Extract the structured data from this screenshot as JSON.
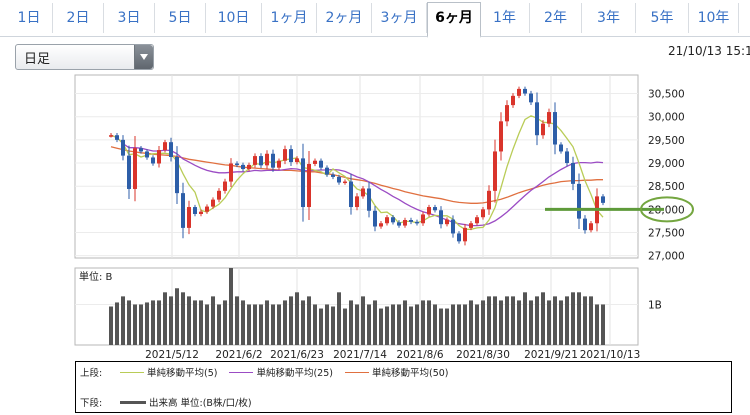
{
  "tabs": [
    {
      "label": "1日"
    },
    {
      "label": "2日"
    },
    {
      "label": "3日"
    },
    {
      "label": "5日"
    },
    {
      "label": "10日"
    },
    {
      "label": "1ヶ月"
    },
    {
      "label": "2ヶ月"
    },
    {
      "label": "3ヶ月"
    },
    {
      "label": "6ヶ月",
      "active": true
    },
    {
      "label": "1年"
    },
    {
      "label": "2年"
    },
    {
      "label": "3年"
    },
    {
      "label": "5年"
    },
    {
      "label": "10年"
    }
  ],
  "period_select": {
    "value": "日足"
  },
  "datetime": "21/10/13 15:1",
  "legend": {
    "upper_label": "上段:",
    "lower_label": "下段:",
    "ma5": "単純移動平均(5)",
    "ma25": "単純移動平均(25)",
    "ma50": "単純移動平均(50)",
    "volume": "出来高 単位:(B株/口/枚)"
  },
  "colors": {
    "up": "#d9342b",
    "down": "#2d5ea8",
    "ma5": "#b9cc57",
    "ma25": "#9b4cc4",
    "ma50": "#e07040",
    "volume": "#555555",
    "highlight_line": "#5e9a3a",
    "highlight_circle": "#74a640"
  },
  "chart_data": {
    "type": "candlestick",
    "x_ticks": [
      "2021/5/12",
      "2021/6/2",
      "2021/6/23",
      "2021/7/14",
      "2021/8/6",
      "2021/8/30",
      "2021/9/21",
      "2021/10/13"
    ],
    "y_ticks": [
      "27,000",
      "27,500",
      "28,000",
      "28,500",
      "29,000",
      "29,500",
      "30,000",
      "30,500"
    ],
    "ylim": [
      26950,
      30900
    ],
    "volume_unit_label": "単位: B",
    "volume_tick_label": "1B",
    "volume_ylim": [
      0,
      1.9
    ],
    "highlight_value": 28000,
    "highlight_label": "28,000",
    "start_close": 29600,
    "closes": [
      29600,
      29500,
      29160,
      28440,
      29320,
      29250,
      29120,
      28990,
      29280,
      29450,
      29130,
      28350,
      27600,
      28050,
      27900,
      27950,
      28060,
      28210,
      28400,
      28600,
      28990,
      28960,
      28870,
      28960,
      29150,
      28950,
      29200,
      28900,
      29050,
      29300,
      29020,
      29100,
      28050,
      28980,
      29050,
      28900,
      28750,
      28700,
      28580,
      28600,
      28050,
      28280,
      28450,
      27970,
      27630,
      27700,
      27830,
      27720,
      27650,
      27770,
      27730,
      27700,
      27890,
      28050,
      27980,
      27680,
      27780,
      27480,
      27310,
      27600,
      27700,
      27830,
      28000,
      28400,
      29250,
      29900,
      30250,
      30450,
      30600,
      30500,
      30310,
      29600,
      29850,
      30100,
      29400,
      29250,
      29000,
      28550,
      27800,
      27550,
      27700,
      28280,
      28140
    ],
    "ma5": [
      29600,
      29550,
      29420,
      29180,
      29200,
      29130,
      29170,
      29200,
      29210,
      29210,
      29190,
      29040,
      28770,
      28530,
      28370,
      27980,
      27940,
      28030,
      28110,
      28250,
      28450,
      28630,
      28770,
      28880,
      28990,
      28970,
      29030,
      29010,
      29030,
      29070,
      29090,
      29110,
      28900,
      28880,
      28840,
      28810,
      28740,
      28870,
      28790,
      28710,
      28580,
      28440,
      28390,
      28290,
      28080,
      27930,
      27940,
      27850,
      27700,
      27740,
      27740,
      27710,
      27750,
      27830,
      27870,
      27860,
      27860,
      27790,
      27650,
      27570,
      27570,
      27600,
      27610,
      27770,
      28040,
      28470,
      28920,
      29300,
      29640,
      29940,
      30020,
      29970,
      29880,
      29870,
      29840,
      29700,
      29530,
      29350,
      29000,
      28620,
      28320,
      27980,
      27830
    ],
    "ma25": [
      29600,
      29550,
      29420,
      29330,
      29330,
      29320,
      29290,
      29260,
      29260,
      29280,
      29270,
      29200,
      29090,
      29020,
      28950,
      28890,
      28840,
      28810,
      28790,
      28790,
      28800,
      28810,
      28810,
      28820,
      28840,
      28830,
      28840,
      28840,
      28840,
      28860,
      28880,
      28870,
      28840,
      28830,
      28840,
      28850,
      28850,
      28860,
      28850,
      28820,
      28760,
      28700,
      28660,
      28590,
      28510,
      28430,
      28360,
      28280,
      28210,
      28130,
      28060,
      28000,
      27950,
      27910,
      27870,
      27820,
      27770,
      27720,
      27690,
      27670,
      27650,
      27650,
      27660,
      27690,
      27750,
      27840,
      27940,
      28060,
      28180,
      28300,
      28410,
      28500,
      28600,
      28700,
      28780,
      28860,
      28930,
      28990,
      29010,
      29010,
      29000,
      29020,
      29010
    ],
    "ma50": [
      29350,
      29320,
      29290,
      29260,
      29240,
      29220,
      29210,
      29190,
      29180,
      29170,
      29160,
      29140,
      29110,
      29080,
      29060,
      29040,
      29020,
      29000,
      28980,
      28960,
      28950,
      28930,
      28910,
      28900,
      28890,
      28880,
      28870,
      28860,
      28850,
      28840,
      28840,
      28830,
      28820,
      28810,
      28810,
      28790,
      28770,
      28750,
      28720,
      28690,
      28660,
      28640,
      28620,
      28590,
      28560,
      28520,
      28490,
      28450,
      28420,
      28380,
      28350,
      28320,
      28290,
      28270,
      28250,
      28230,
      28200,
      28170,
      28150,
      28140,
      28130,
      28130,
      28140,
      28160,
      28190,
      28220,
      28260,
      28310,
      28360,
      28400,
      28440,
      28480,
      28520,
      28550,
      28570,
      28600,
      28610,
      28620,
      28620,
      28630,
      28630,
      28640,
      28640
    ],
    "volume": [
      0.95,
      1.05,
      1.2,
      1.1,
      1.0,
      1.0,
      1.05,
      1.1,
      1.1,
      1.3,
      1.2,
      1.4,
      1.3,
      1.2,
      1.1,
      1.1,
      1.0,
      1.2,
      1.0,
      1.1,
      1.9,
      1.2,
      1.1,
      1.0,
      1.0,
      1.0,
      1.1,
      1.0,
      1.0,
      1.1,
      1.2,
      1.3,
      1.1,
      1.2,
      1.0,
      0.9,
      1.0,
      0.95,
      1.3,
      0.9,
      1.1,
      1.0,
      1.2,
      1.0,
      1.1,
      0.9,
      0.95,
      1.0,
      1.0,
      1.1,
      0.95,
      1.0,
      1.1,
      1.1,
      1.0,
      0.9,
      0.9,
      1.0,
      1.0,
      1.0,
      1.1,
      1.0,
      1.1,
      1.2,
      1.2,
      1.1,
      1.2,
      1.2,
      1.1,
      1.3,
      1.1,
      1.2,
      1.3,
      1.1,
      1.2,
      1.1,
      1.2,
      1.3,
      1.3,
      1.2,
      1.2,
      1.0,
      1.0
    ]
  }
}
